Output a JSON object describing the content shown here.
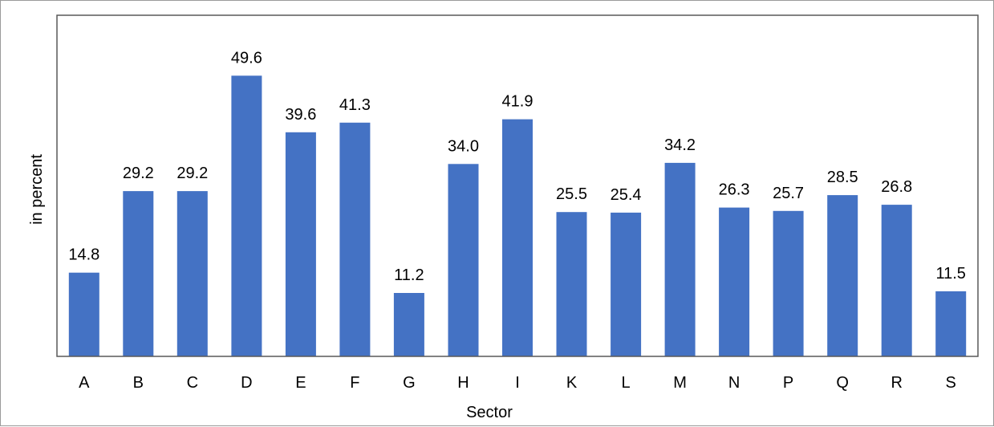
{
  "chart_data": {
    "type": "bar",
    "title": "",
    "xlabel": "Sector",
    "ylabel": "in percent",
    "categories": [
      "A",
      "B",
      "C",
      "D",
      "E",
      "F",
      "G",
      "H",
      "I",
      "K",
      "L",
      "M",
      "N",
      "P",
      "Q",
      "R",
      "S"
    ],
    "values": [
      14.8,
      29.2,
      29.2,
      49.6,
      39.6,
      41.3,
      11.2,
      34.0,
      41.9,
      25.5,
      25.4,
      34.2,
      26.3,
      25.7,
      28.5,
      26.8,
      11.5
    ],
    "value_labels": [
      "14.8",
      "29.2",
      "29.2",
      "49.6",
      "39.6",
      "41.3",
      "11.2",
      "34.0",
      "41.9",
      "25.5",
      "25.4",
      "34.2",
      "26.3",
      "25.7",
      "28.5",
      "26.8",
      "11.5"
    ],
    "ylim": [
      0,
      50
    ],
    "grid": false,
    "legend": "none",
    "bar_color": "#4472c4"
  }
}
